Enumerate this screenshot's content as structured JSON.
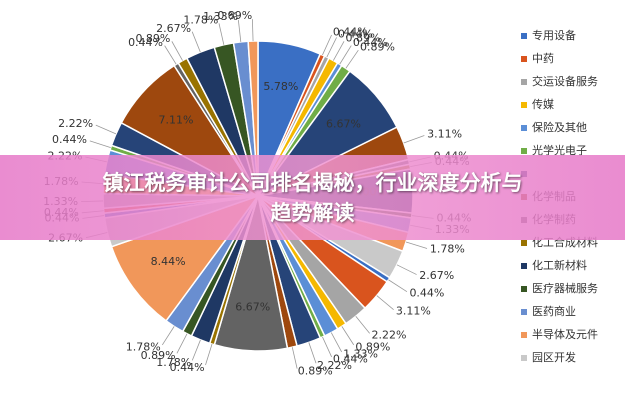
{
  "chart_data": {
    "type": "pie",
    "title": "镇江税务审计公司排名揭秘，行业深度分析与趋势解读",
    "legend_position": "right",
    "legend": [
      {
        "name": "专用设备",
        "color": "#3a6fc4"
      },
      {
        "name": "中药",
        "color": "#d9541e"
      },
      {
        "name": "交运设备服务",
        "color": "#a5a5a5"
      },
      {
        "name": "传媒",
        "color": "#f5b800"
      },
      {
        "name": "保险及其他",
        "color": "#5b8ed6"
      },
      {
        "name": "光学光电子",
        "color": "#70ad47"
      },
      {
        "name": null,
        "color": "#264478"
      },
      {
        "name": "化学制品",
        "color": "#9e480e"
      },
      {
        "name": "化学制药",
        "color": "#636363"
      },
      {
        "name": "化工合成材料",
        "color": "#997300"
      },
      {
        "name": "化工新材料",
        "color": "#1f3864"
      },
      {
        "name": "医疗器械服务",
        "color": "#375623"
      },
      {
        "name": "医药商业",
        "color": "#698ed0"
      },
      {
        "name": "半导体及元件",
        "color": "#f1975a"
      },
      {
        "name": "园区开发",
        "color": "#c9c9c9"
      }
    ],
    "values": [
      5.78,
      0.44,
      0.44,
      0.89,
      0.44,
      0.89,
      6.67,
      3.11,
      0.44,
      0.44,
      4.0,
      0.44,
      1.33,
      1.78,
      2.67,
      0.44,
      3.11,
      2.22,
      0.89,
      1.33,
      0.44,
      2.22,
      0.89,
      6.67,
      0.44,
      1.78,
      0.89,
      1.78,
      8.44,
      2.67,
      0.44,
      0.44,
      1.33,
      1.78,
      2.22,
      0.44,
      2.22,
      7.11,
      0.44,
      0.89,
      2.67,
      1.78,
      1.33,
      0.89
    ],
    "value_labels": [
      "5.78%",
      "0.44%",
      "0.44%",
      "0.89%",
      "0.44%",
      "0.89%",
      "6.67%",
      "3.11%",
      "0.44%",
      "0.44%",
      "4.00%",
      "0.44%",
      "1.33%",
      "1.78%",
      "2.67%",
      "0.44%",
      "3.11%",
      "2.22%",
      "0.89%",
      "1.33%",
      "0.44%",
      "2.22%",
      "0.89%",
      "6.67%",
      "0.44%",
      "1.78%",
      "0.89%",
      "1.78%",
      "8.44%",
      "2.67%",
      "0.44%",
      "0.44%",
      "1.33%",
      "1.78%",
      "2.22%",
      "0.44%",
      "2.22%",
      "7.11%",
      "0.44%",
      "0.89%",
      "2.67%",
      "1.78%",
      "1.33%",
      "0.89%"
    ]
  }
}
